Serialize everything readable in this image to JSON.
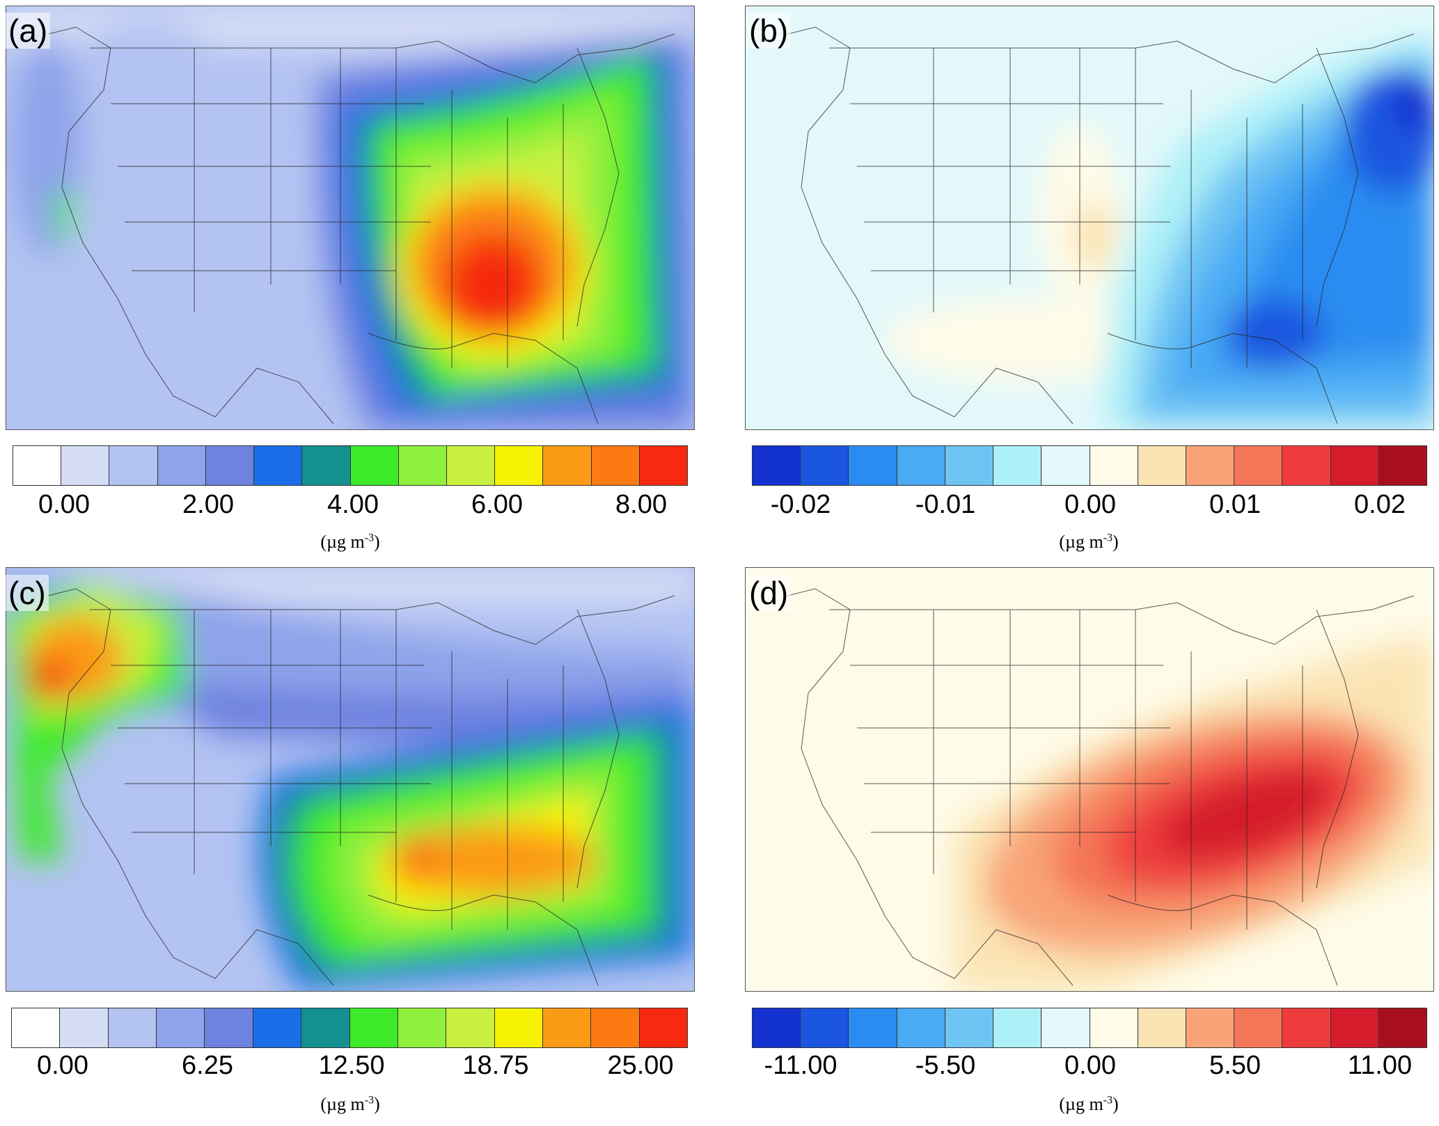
{
  "panels": [
    {
      "label": "(a)",
      "colormap": "sequential",
      "colors": [
        "#ffffff",
        "#d5ddf5",
        "#b3c3f2",
        "#8ea3ea",
        "#6e82e0",
        "#1a6ee8",
        "#159090",
        "#3cea2a",
        "#8ef03c",
        "#c8f040",
        "#f6f200",
        "#fb9a14",
        "#fb7a12",
        "#f52a10"
      ],
      "ticks": [
        "0.00",
        "2.00",
        "4.00",
        "6.00",
        "8.00"
      ],
      "unit": "(µg m",
      "unit_exp": "-3",
      "unit_close": ")"
    },
    {
      "label": "(b)",
      "colormap": "diverging",
      "colors": [
        "#1432d0",
        "#1a56e0",
        "#2a8cf0",
        "#4aaaf4",
        "#70c4f4",
        "#aef0f8",
        "#e2f8fa",
        "#fefbe8",
        "#fbe4b4",
        "#f8a478",
        "#f47658",
        "#ee3c3c",
        "#d41c2c",
        "#a80f1e"
      ],
      "ticks": [
        "-0.02",
        "-0.01",
        "0.00",
        "0.01",
        "0.02"
      ],
      "unit": "(µg m",
      "unit_exp": "-3",
      "unit_close": ")"
    },
    {
      "label": "(c)",
      "colormap": "sequential",
      "colors": [
        "#ffffff",
        "#d5ddf5",
        "#b3c3f2",
        "#8ea3ea",
        "#6e82e0",
        "#1a6ee8",
        "#159090",
        "#3cea2a",
        "#8ef03c",
        "#c8f040",
        "#f6f200",
        "#fb9a14",
        "#fb7a12",
        "#f52a10"
      ],
      "ticks": [
        "0.00",
        "6.25",
        "12.50",
        "18.75",
        "25.00"
      ],
      "unit": "(µg m",
      "unit_exp": "-3",
      "unit_close": ")"
    },
    {
      "label": "(d)",
      "colormap": "diverging",
      "colors": [
        "#1432d0",
        "#1a56e0",
        "#2a8cf0",
        "#4aaaf4",
        "#70c4f4",
        "#aef0f8",
        "#e2f8fa",
        "#fefbe8",
        "#fbe4b4",
        "#f8a478",
        "#f47658",
        "#ee3c3c",
        "#d41c2c",
        "#a80f1e"
      ],
      "ticks": [
        "-11.00",
        "-5.50",
        "0.00",
        "5.50",
        "11.00"
      ],
      "unit": "(µg m",
      "unit_exp": "-3",
      "unit_close": ")"
    }
  ]
}
